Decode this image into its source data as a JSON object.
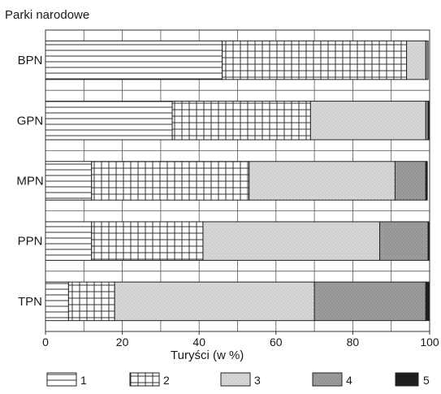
{
  "chart_data": {
    "type": "bar",
    "orientation": "horizontal",
    "stacked": true,
    "ylabel": "Parki narodowe",
    "xlabel": "Turyści (w %)",
    "categories": [
      "BPN",
      "GPN",
      "MPN",
      "PPN",
      "TPN"
    ],
    "xlim": [
      0,
      100
    ],
    "xticks": [
      "0",
      "20",
      "40",
      "60",
      "80",
      "100"
    ],
    "grid": true,
    "legend_position": "bottom",
    "series": [
      {
        "name": "1",
        "pattern": "horizontal-lines",
        "color": "#ffffff",
        "values": [
          46,
          33,
          12,
          12,
          6
        ]
      },
      {
        "name": "2",
        "pattern": "grid",
        "color": "#ffffff",
        "values": [
          48,
          36,
          41,
          29,
          12
        ]
      },
      {
        "name": "3",
        "pattern": "light-dots",
        "color": "#d9d9d9",
        "values": [
          5,
          30,
          38,
          46,
          52
        ]
      },
      {
        "name": "4",
        "pattern": "dark-dots",
        "color": "#9a9a9a",
        "values": [
          0.6,
          0.6,
          8,
          12.6,
          29
        ]
      },
      {
        "name": "5",
        "pattern": "solid",
        "color": "#1e1e1e",
        "values": [
          0,
          0.4,
          0.4,
          0.4,
          1
        ]
      }
    ]
  }
}
